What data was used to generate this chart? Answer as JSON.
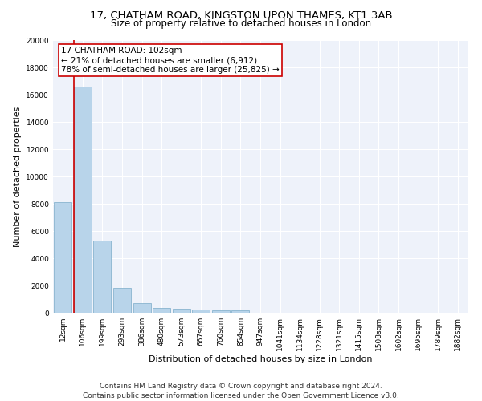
{
  "title": "17, CHATHAM ROAD, KINGSTON UPON THAMES, KT1 3AB",
  "subtitle": "Size of property relative to detached houses in London",
  "xlabel": "Distribution of detached houses by size in London",
  "ylabel": "Number of detached properties",
  "categories": [
    "12sqm",
    "106sqm",
    "199sqm",
    "293sqm",
    "386sqm",
    "480sqm",
    "573sqm",
    "667sqm",
    "760sqm",
    "854sqm",
    "947sqm",
    "1041sqm",
    "1134sqm",
    "1228sqm",
    "1321sqm",
    "1415sqm",
    "1508sqm",
    "1602sqm",
    "1695sqm",
    "1789sqm",
    "1882sqm"
  ],
  "values": [
    8100,
    16600,
    5300,
    1850,
    700,
    350,
    270,
    230,
    200,
    175,
    0,
    0,
    0,
    0,
    0,
    0,
    0,
    0,
    0,
    0,
    0
  ],
  "bar_color": "#b8d4ea",
  "bar_edge_color": "#7aaac8",
  "vline_color": "#cc0000",
  "annotation_text": "17 CHATHAM ROAD: 102sqm\n← 21% of detached houses are smaller (6,912)\n78% of semi-detached houses are larger (25,825) →",
  "annotation_box_color": "#ffffff",
  "annotation_box_edge_color": "#cc0000",
  "ylim": [
    0,
    20000
  ],
  "yticks": [
    0,
    2000,
    4000,
    6000,
    8000,
    10000,
    12000,
    14000,
    16000,
    18000,
    20000
  ],
  "bg_color": "#eef2fa",
  "grid_color": "#ffffff",
  "footer_line1": "Contains HM Land Registry data © Crown copyright and database right 2024.",
  "footer_line2": "Contains public sector information licensed under the Open Government Licence v3.0.",
  "title_fontsize": 9.5,
  "subtitle_fontsize": 8.5,
  "axis_label_fontsize": 8,
  "tick_fontsize": 6.5,
  "annotation_fontsize": 7.5,
  "footer_fontsize": 6.5,
  "fig_width": 6.0,
  "fig_height": 5.0,
  "dpi": 100
}
